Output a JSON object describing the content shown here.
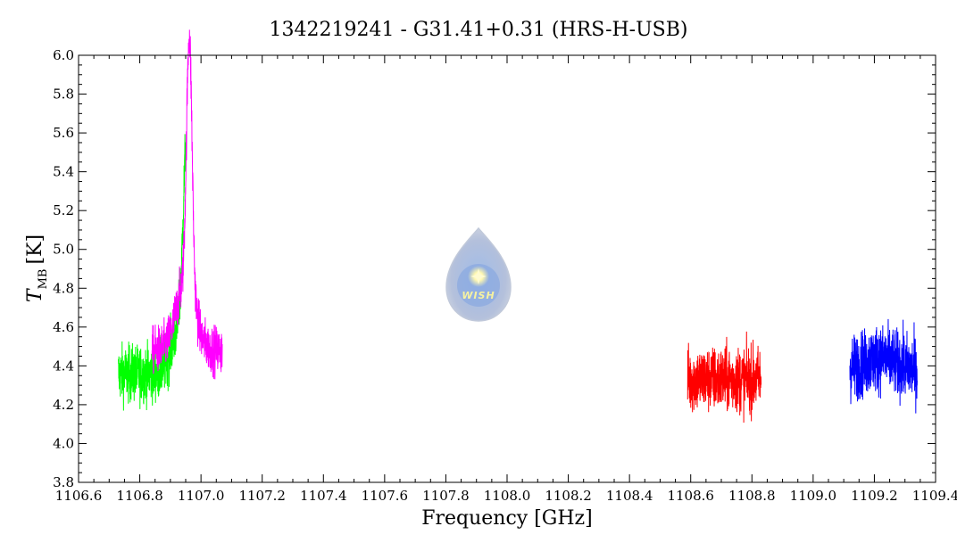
{
  "chart_data": {
    "type": "line",
    "title": "1342219241 - G31.41+0.31 (HRS-H-USB)",
    "xlabel": "Frequency [GHz]",
    "ylabel": {
      "symbol": "T",
      "subscript": "MB",
      "unit": "[K]"
    },
    "xlim": [
      1106.6,
      1109.4
    ],
    "ylim": [
      3.8,
      6.0
    ],
    "x_major_ticks": [
      1106.6,
      1106.8,
      1107.0,
      1107.2,
      1107.4,
      1107.6,
      1107.8,
      1108.0,
      1108.2,
      1108.4,
      1108.6,
      1108.8,
      1109.0,
      1109.2,
      1109.4
    ],
    "x_tick_labels": [
      "1106.6",
      "1106.8",
      "1107.0",
      "1107.2",
      "1107.4",
      "1107.6",
      "1107.8",
      "1108.0",
      "1108.2",
      "1108.4",
      "1108.6",
      "1108.8",
      "1109.0",
      "1109.2",
      "1109.4"
    ],
    "y_major_ticks": [
      3.8,
      4.0,
      4.2,
      4.4,
      4.6,
      4.8,
      5.0,
      5.2,
      5.4,
      5.6,
      5.8,
      6.0
    ],
    "y_tick_labels": [
      "3.8",
      "4.0",
      "4.2",
      "4.4",
      "4.6",
      "4.8",
      "5.0",
      "5.2",
      "5.4",
      "5.6",
      "5.8",
      "6.0"
    ],
    "grid": false,
    "logo_text": "WISH",
    "series": [
      {
        "color": "#00ff00",
        "x_range": [
          1106.73,
          1106.95
        ],
        "baseline": 4.36,
        "noise": 0.12,
        "peaks": [
          {
            "center": 1106.955,
            "width": 0.012,
            "height": 1.05
          },
          {
            "center": 1106.935,
            "width": 0.03,
            "height": 0.25
          }
        ]
      },
      {
        "color": "#ff00ff",
        "x_range": [
          1106.84,
          1107.07
        ],
        "baseline": 4.48,
        "noise": 0.1,
        "peaks": [
          {
            "center": 1106.962,
            "width": 0.009,
            "height": 1.3
          },
          {
            "center": 1106.95,
            "width": 0.03,
            "height": 0.35
          }
        ]
      },
      {
        "color": "#ff0000",
        "x_range": [
          1108.59,
          1108.83
        ],
        "baseline": 4.33,
        "noise": 0.14,
        "peaks": []
      },
      {
        "color": "#0000ff",
        "x_range": [
          1109.12,
          1109.34
        ],
        "baseline": 4.38,
        "noise": 0.14,
        "peaks": [
          {
            "center": 1109.22,
            "width": 0.05,
            "height": 0.06
          }
        ]
      }
    ]
  }
}
